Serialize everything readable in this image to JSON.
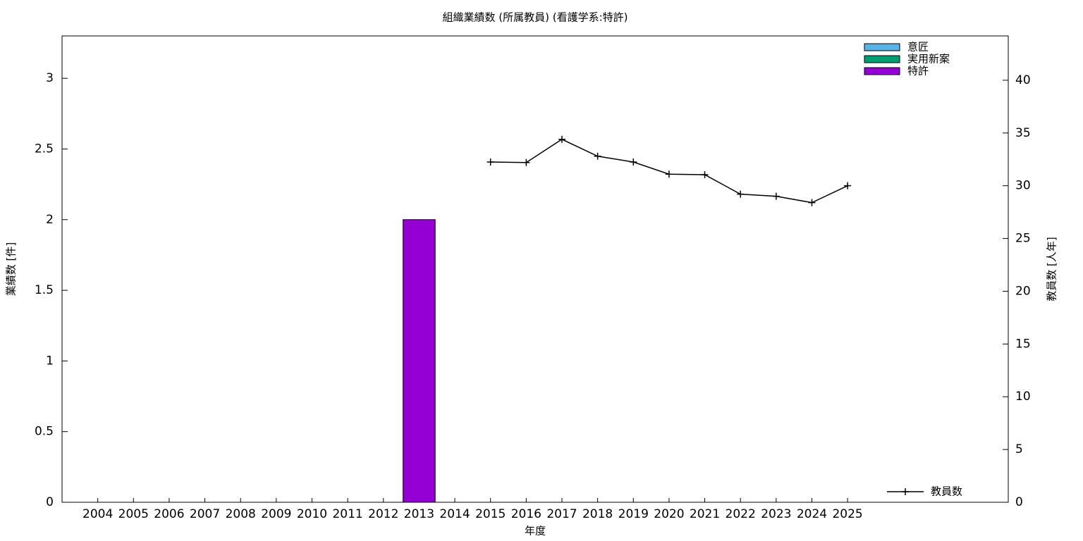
{
  "chart_data": {
    "type": "bar",
    "title": "組織業績数 (所属教員) (看護学系:特許)",
    "xlabel": "年度",
    "ylabel": "業績数 [件]",
    "y2label": "教員数 [人年]",
    "categories": [
      "2004",
      "2005",
      "2006",
      "2007",
      "2008",
      "2009",
      "2010",
      "2011",
      "2012",
      "2013",
      "2014",
      "2015",
      "2016",
      "2017",
      "2018",
      "2019",
      "2020",
      "2021",
      "2022",
      "2023",
      "2024",
      "2025"
    ],
    "series": [
      {
        "name": "意匠",
        "color": "#56b4e9",
        "stacked": true,
        "values": [
          0,
          0,
          0,
          0,
          0,
          0,
          0,
          0,
          0,
          0,
          0,
          0,
          0,
          0,
          0,
          0,
          0,
          0,
          0,
          0,
          0,
          0
        ]
      },
      {
        "name": "実用新案",
        "color": "#009e73",
        "stacked": true,
        "values": [
          0,
          0,
          0,
          0,
          0,
          0,
          0,
          0,
          0,
          0,
          0,
          0,
          0,
          0,
          0,
          0,
          0,
          0,
          0,
          0,
          0,
          0
        ]
      },
      {
        "name": "特許",
        "color": "#9400d3",
        "stacked": true,
        "values": [
          0,
          0,
          0,
          0,
          0,
          0,
          0,
          0,
          0,
          2,
          0,
          0,
          0,
          0,
          0,
          0,
          0,
          0,
          0,
          0,
          0,
          0
        ]
      },
      {
        "name": "教員数",
        "color": "#000000",
        "type": "line",
        "axis": "y2",
        "values": [
          null,
          null,
          null,
          null,
          null,
          null,
          null,
          null,
          null,
          null,
          null,
          32.25,
          32.2,
          34.4,
          32.8,
          32.25,
          31.1,
          31.05,
          29.2,
          29.0,
          28.4,
          30.0
        ]
      }
    ],
    "ylim": [
      0,
      3.3
    ],
    "yticks": [
      0,
      0.5,
      1,
      1.5,
      2,
      2.5,
      3
    ],
    "y2lim": [
      0,
      44.2
    ],
    "y2ticks": [
      0,
      5,
      10,
      15,
      20,
      25,
      30,
      35,
      40
    ],
    "legend": "upper right"
  }
}
